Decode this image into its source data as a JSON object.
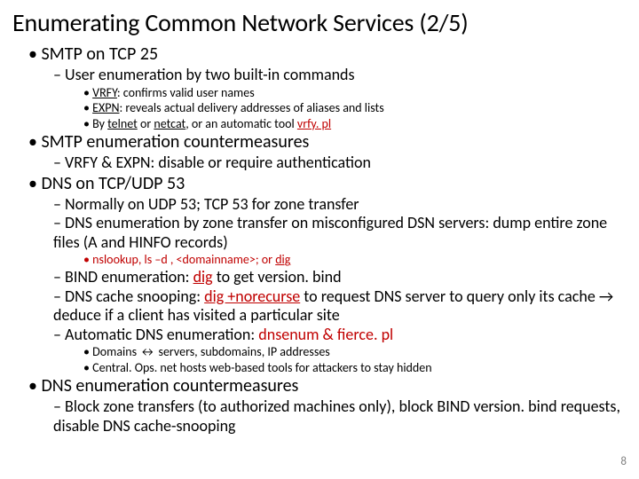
{
  "title": "Enumerating Common Network Services (2/5)",
  "colors": {
    "highlight": "#c00000",
    "text": "#000000",
    "bg": "#ffffff",
    "pagenum": "#808080"
  },
  "typography": {
    "title_fontsize": 28,
    "l1_fontsize": 20,
    "l2_fontsize": 18,
    "l3_fontsize": 14,
    "font_family": "Calibri"
  },
  "s1": {
    "heading": "SMTP on TCP 25",
    "sub1": "User enumeration by two built-in commands",
    "b1_pre": "VRFY",
    "b1_post": ": confirms valid user names",
    "b2_pre": "EXPN",
    "b2_post": ": reveals actual delivery addresses of aliases and lists",
    "b3_a": "By ",
    "b3_b": "telnet",
    "b3_c": " or ",
    "b3_d": "netcat",
    "b3_e": ", or an automatic tool ",
    "b3_f": "vrfy. pl"
  },
  "s2": {
    "heading": "SMTP enumeration countermeasures",
    "sub1": "VRFY & EXPN: disable or require authentication"
  },
  "s3": {
    "heading": "DNS on TCP/UDP 53",
    "sub1": "Normally on UDP 53; TCP 53 for zone transfer",
    "sub2": "DNS enumeration by zone transfer on misconfigured DSN servers: dump entire zone files (A and HINFO records)",
    "tool_a": "nslookup, ls –d , <domainname>; or ",
    "tool_b": "dig",
    "sub3_a": "BIND enumeration: ",
    "sub3_b": "dig",
    "sub3_c": " to get version. bind",
    "sub4_a": "DNS cache snooping: ",
    "sub4_b": "dig +norecurse",
    "sub4_c": " to request DNS server to query only its cache ",
    "sub4_arrow": "→",
    "sub4_d": " deduce if a client has visited a particular site",
    "sub5_a": "Automatic DNS enumeration: ",
    "sub5_b": "dnsenum & fierce. pl",
    "d1_a": "Domains ",
    "d1_arrow": "↔",
    "d1_b": " servers, subdomains, IP addresses",
    "d2": "Central. Ops. net hosts web-based tools for attackers to stay hidden"
  },
  "s4": {
    "heading": "DNS enumeration countermeasures",
    "sub1": "Block zone transfers (to authorized machines only), block BIND version. bind requests, disable DNS cache-snooping"
  },
  "pagenum": "8"
}
